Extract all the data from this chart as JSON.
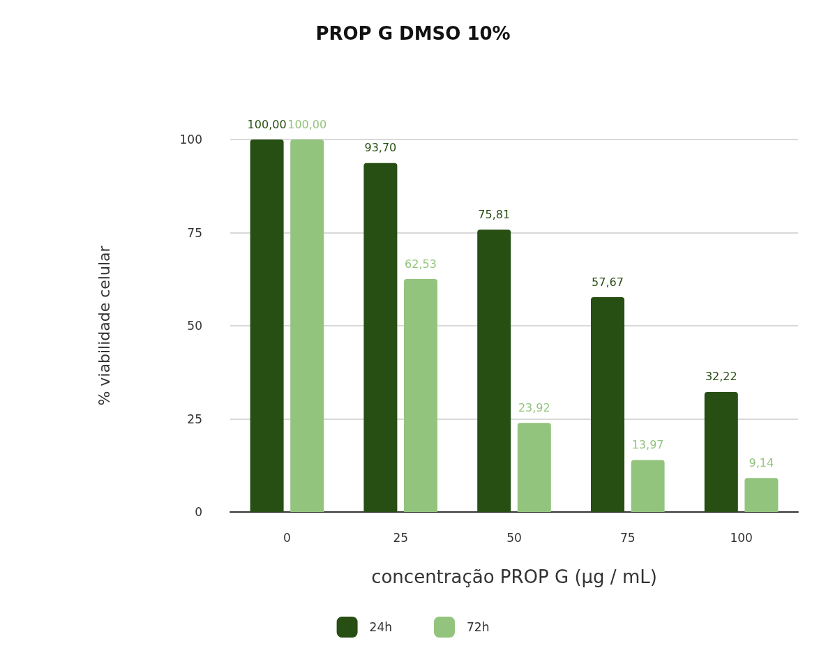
{
  "chart_data": {
    "type": "bar",
    "title": "PROP G DMSO 10%",
    "xlabel": "concentração PROP G (µg / mL)",
    "ylabel": "% viabilidade celular",
    "categories": [
      "0",
      "25",
      "50",
      "75",
      "100"
    ],
    "series": [
      {
        "name": "24h",
        "color": "#274e13",
        "values": [
          100,
          93.7,
          75.81,
          57.67,
          32.22
        ],
        "value_labels": [
          "100,00",
          "93,70",
          "75,81",
          "57,67",
          "32,22"
        ]
      },
      {
        "name": "72h",
        "color": "#93c47d",
        "values": [
          100,
          62.53,
          23.92,
          13.97,
          9.14
        ],
        "value_labels": [
          "100,00",
          "62,53",
          "23,92",
          "13,97",
          "9,14"
        ]
      }
    ],
    "ylim": [
      0,
      100
    ],
    "yticks": [
      0,
      25,
      50,
      75,
      100
    ],
    "grid": "y",
    "legend": "bottom"
  }
}
